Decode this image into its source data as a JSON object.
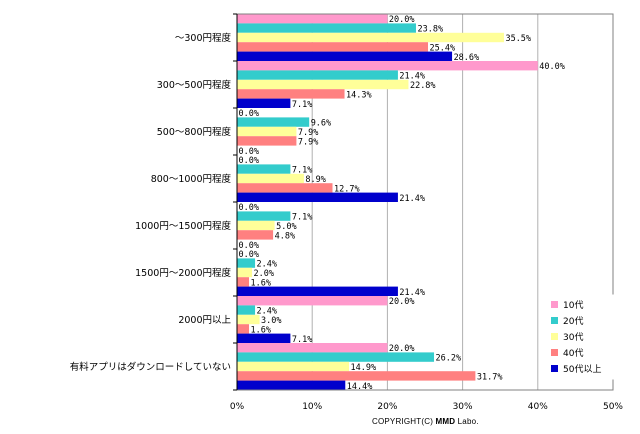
{
  "chart_data": {
    "type": "bar",
    "orientation": "horizontal",
    "categories": [
      "～300円程度",
      "300～500円程度",
      "500～800円程度",
      "800～1000円程度",
      "1000円～1500円程度",
      "1500円～2000円程度",
      "2000円以上",
      "有料アプリはダウンロードしていない"
    ],
    "series": [
      {
        "name": "10代",
        "color": "#ff99cc",
        "values": [
          20.0,
          40.0,
          0.0,
          0.0,
          0.0,
          0.0,
          20.0,
          20.0
        ]
      },
      {
        "name": "20代",
        "color": "#33cccc",
        "values": [
          23.8,
          21.4,
          9.6,
          7.1,
          7.1,
          2.4,
          2.4,
          26.2
        ]
      },
      {
        "name": "30代",
        "color": "#ffff99",
        "values": [
          35.5,
          22.8,
          7.9,
          8.9,
          5.0,
          2.0,
          3.0,
          14.9
        ]
      },
      {
        "name": "40代",
        "color": "#ff8080",
        "values": [
          25.4,
          14.3,
          7.9,
          12.7,
          4.8,
          1.6,
          1.6,
          31.7
        ]
      },
      {
        "name": "50代以上",
        "color": "#0000cc",
        "values": [
          28.6,
          7.1,
          0.0,
          21.4,
          0.0,
          21.4,
          7.1,
          14.4
        ]
      }
    ],
    "value_labels": [
      [
        "20.0%",
        "40.0%",
        "0.0%",
        "0.0%",
        "0.0%",
        "0.0%",
        "20.0%",
        "20.0%"
      ],
      [
        "23.8%",
        "21.4%",
        "9.6%",
        "7.1%",
        "7.1%",
        "2.4%",
        "2.4%",
        "26.2%"
      ],
      [
        "35.5%",
        "22.8%",
        "7.9%",
        "8.9%",
        "5.0%",
        "2.0%",
        "3.0%",
        "14.9%"
      ],
      [
        "25.4%",
        "14.3%",
        "7.9%",
        "12.7%",
        "4.8%",
        "1.6%",
        "1.6%",
        "31.7%"
      ],
      [
        "28.6%",
        "7.1%",
        "0.0%",
        "21.4%",
        "0.0%",
        "21.4%",
        "7.1%",
        "14.4%"
      ]
    ],
    "x_ticks": [
      "0%",
      "10%",
      "20%",
      "30%",
      "40%",
      "50%"
    ],
    "xlim": [
      0,
      50
    ],
    "grid": true,
    "legend_position": "bottom-right",
    "title": "",
    "xlabel": "",
    "ylabel": ""
  },
  "copyright": {
    "prefix": "COPYRIGHT(C) ",
    "brand": "MMD",
    "suffix": " Labo."
  }
}
